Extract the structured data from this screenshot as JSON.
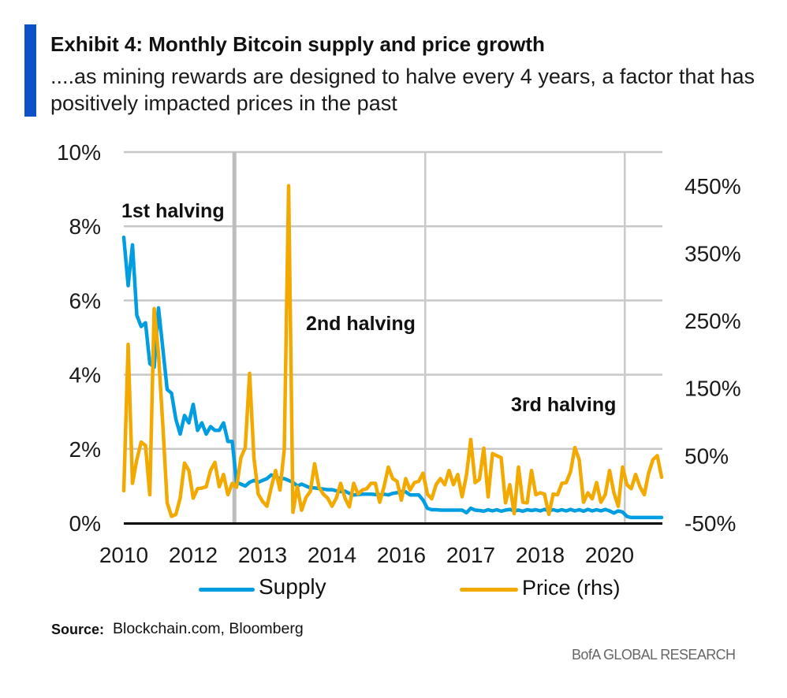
{
  "header": {
    "accent_color": "#0b52c8",
    "title": "Exhibit 4: Monthly Bitcoin supply and price growth",
    "subtitle": [
      "....as mining rewards are designed to halve every 4 years, a factor that has",
      "positively impacted prices in the past"
    ]
  },
  "chart_data": {
    "type": "line",
    "title": "Exhibit 4: Monthly Bitcoin supply and price growth",
    "xlabel": "",
    "ylabel": "",
    "grid": true,
    "x": {
      "tick_labels": [
        "2010",
        "2012",
        "2013",
        "2014",
        "2016",
        "2017",
        "2018",
        "2020"
      ],
      "tick_index": [
        0,
        16,
        32,
        48,
        64,
        80,
        96,
        112
      ]
    },
    "y_left": {
      "min": 0,
      "max": 10,
      "ticks": [
        0,
        2,
        4,
        6,
        8,
        10
      ],
      "tick_labels": [
        "0%",
        "2%",
        "4%",
        "6%",
        "8%",
        "10%"
      ]
    },
    "y_right": {
      "min": -50,
      "max": 500,
      "ticks": [
        -50,
        50,
        150,
        250,
        350,
        450
      ],
      "tick_labels": [
        "-50%",
        "50%",
        "150%",
        "250%",
        "350%",
        "450%"
      ]
    },
    "series": [
      {
        "name": "Supply",
        "axis": "left",
        "unit": "%",
        "color": "#009ee0",
        "values": [
          7.7,
          6.4,
          7.5,
          5.6,
          5.3,
          5.4,
          4.3,
          4.2,
          5.8,
          4.7,
          3.6,
          3.5,
          2.8,
          2.4,
          2.9,
          2.7,
          3.2,
          2.5,
          2.7,
          2.4,
          2.6,
          2.5,
          2.5,
          2.7,
          2.2,
          2.2,
          1.1,
          1.05,
          1.0,
          1.1,
          1.15,
          1.1,
          1.15,
          1.2,
          1.3,
          1.25,
          1.2,
          1.2,
          1.15,
          1.1,
          1.0,
          1.05,
          1.0,
          0.95,
          0.95,
          0.93,
          0.92,
          0.9,
          0.9,
          0.87,
          0.85,
          0.86,
          0.8,
          0.76,
          0.77,
          0.78,
          0.78,
          0.78,
          0.77,
          0.76,
          0.78,
          0.76,
          0.8,
          0.82,
          0.85,
          0.84,
          0.76,
          0.76,
          0.76,
          0.62,
          0.4,
          0.36,
          0.36,
          0.35,
          0.35,
          0.35,
          0.35,
          0.35,
          0.35,
          0.28,
          0.4,
          0.35,
          0.34,
          0.32,
          0.36,
          0.33,
          0.36,
          0.32,
          0.35,
          0.37,
          0.33,
          0.35,
          0.32,
          0.36,
          0.34,
          0.36,
          0.33,
          0.37,
          0.33,
          0.36,
          0.33,
          0.36,
          0.33,
          0.37,
          0.33,
          0.36,
          0.32,
          0.37,
          0.33,
          0.36,
          0.33,
          0.37,
          0.33,
          0.27,
          0.33,
          0.3,
          0.18,
          0.15,
          0.15,
          0.15,
          0.15,
          0.15,
          0.15,
          0.15,
          0.15
        ]
      },
      {
        "name": "Price (rhs)",
        "axis": "right",
        "unit": "%",
        "color": "#f2a900",
        "values": [
          -2,
          215,
          9,
          44,
          70,
          65,
          -8,
          268,
          200,
          95,
          -20,
          -40,
          -37,
          -13,
          39,
          28,
          -13,
          1,
          2,
          4,
          28,
          40,
          4,
          22,
          -8,
          9,
          3,
          47,
          62,
          172,
          47,
          -7,
          -18,
          -25,
          3,
          28,
          -1,
          59,
          450,
          -34,
          4,
          -31,
          -12,
          -3,
          38,
          3,
          -7,
          -13,
          -25,
          -13,
          9,
          -13,
          -26,
          9,
          -7,
          -1,
          1,
          9,
          9,
          -19,
          4,
          33,
          16,
          12,
          -16,
          16,
          -1,
          10,
          12,
          24,
          -7,
          -14,
          7,
          16,
          7,
          28,
          7,
          22,
          -11,
          21,
          74,
          10,
          15,
          61,
          -11,
          53,
          50,
          47,
          -20,
          7,
          -36,
          33,
          -19,
          -20,
          28,
          -8,
          -5,
          -7,
          -37,
          -7,
          -8,
          9,
          10,
          26,
          62,
          44,
          -19,
          -5,
          -14,
          10,
          -19,
          -8,
          28,
          -5,
          -25,
          33,
          7,
          1,
          22,
          4,
          -8,
          24,
          44,
          50,
          18
        ]
      }
    ],
    "annotations": [
      {
        "label": "1st halving",
        "at_index": 25.5
      },
      {
        "label": "2nd halving",
        "at_index": 69.5
      },
      {
        "label": "3rd halving",
        "at_index": 115.5
      }
    ],
    "legend": {
      "position": "bottom",
      "entries": [
        "Supply",
        "Price (rhs)"
      ]
    }
  },
  "footer": {
    "source_label": "Source:",
    "source_text": "Blockchain.com,  Bloomberg",
    "publisher": "BofA GLOBAL RESEARCH"
  }
}
